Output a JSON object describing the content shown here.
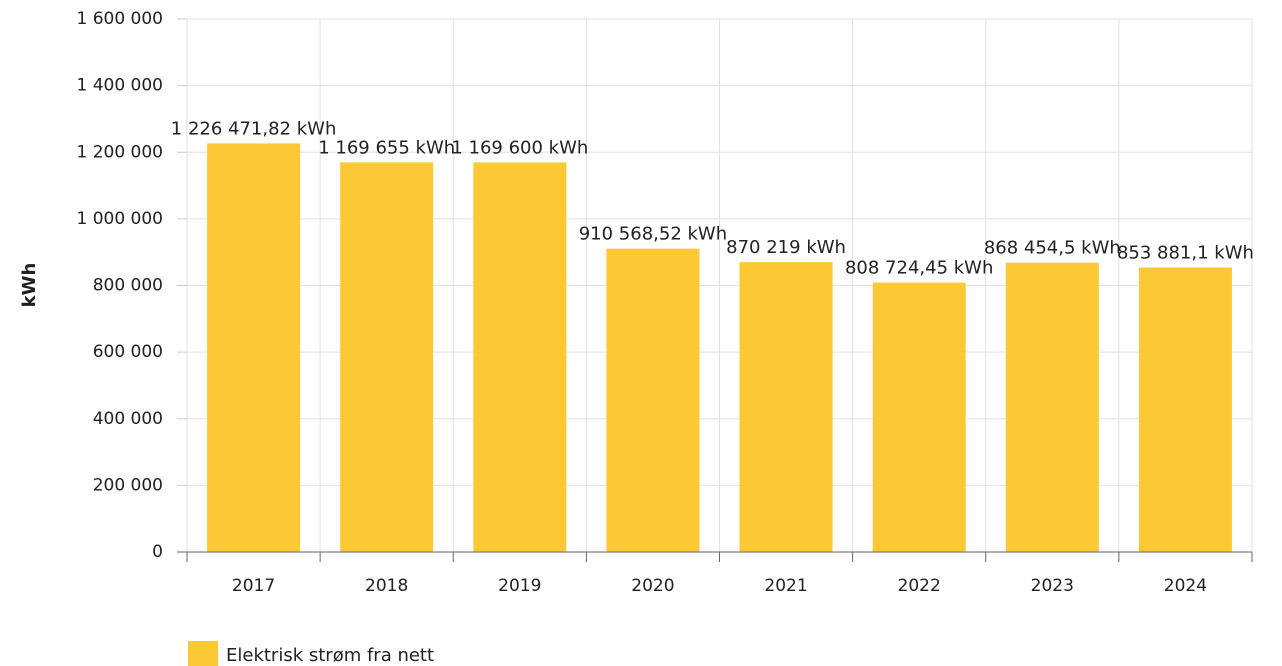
{
  "chart_data": {
    "type": "bar",
    "y_label": "kWh",
    "categories": [
      "2017",
      "2018",
      "2019",
      "2020",
      "2021",
      "2022",
      "2023",
      "2024"
    ],
    "series": [
      {
        "name": "Elektrisk strøm fra nett",
        "color": "#fcc934",
        "values": [
          1226471.82,
          1169655,
          1169600,
          910568.52,
          870219,
          808724.45,
          868454.5,
          853881.1
        ],
        "value_labels": [
          "1 226 471,82 kWh",
          "1 169 655 kWh",
          "1 169 600 kWh",
          "910 568,52 kWh",
          "870 219 kWh",
          "808 724,45 kWh",
          "868 454,5 kWh",
          "853 881,1 kWh"
        ]
      }
    ],
    "ylim": [
      0,
      1600000
    ],
    "yticks": [
      0,
      {
        "value": 200000,
        "label": "200 000"
      },
      {
        "value": 400000,
        "label": "400 000"
      },
      {
        "value": 600000,
        "label": "600 000"
      },
      {
        "value": 800000,
        "label": "800 000"
      },
      {
        "value": 1000000,
        "label": "1 000 000"
      },
      {
        "value": 1200000,
        "label": "1 200 000"
      },
      {
        "value": 1400000,
        "label": "1 400 000"
      },
      {
        "value": 1600000,
        "label": "1 600 000"
      }
    ],
    "grid": true,
    "legend": "bottom-left"
  }
}
